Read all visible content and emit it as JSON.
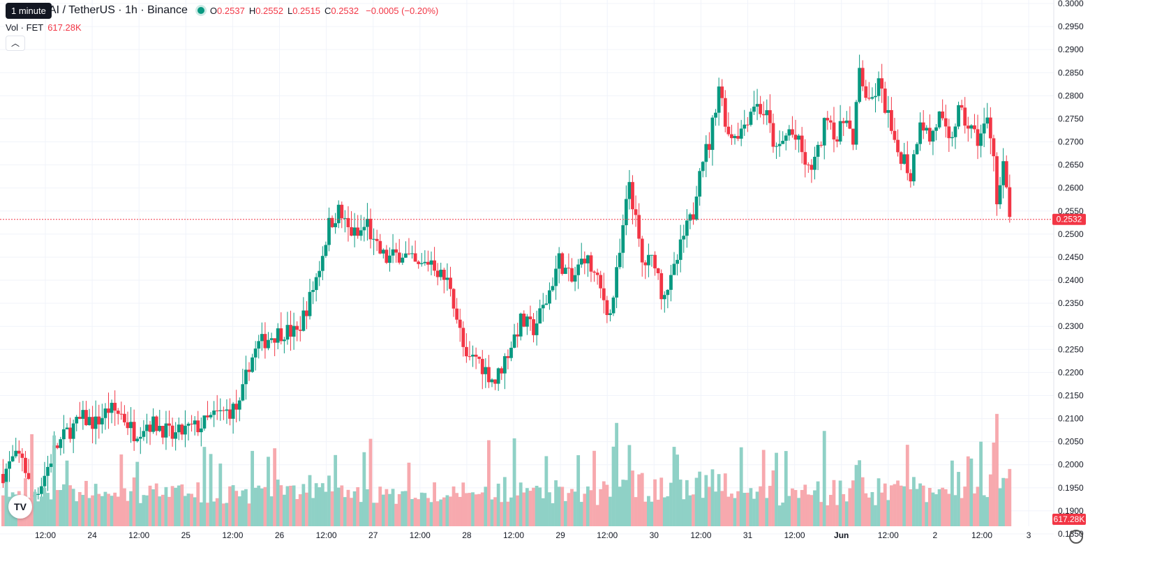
{
  "legend": {
    "tooltip": "1 minute",
    "symbol": "AI / TetherUS · 1h · Binance",
    "o_label": "O",
    "o_value": "0.2537",
    "h_label": "H",
    "h_value": "0.2552",
    "l_label": "L",
    "l_value": "0.2515",
    "c_label": "C",
    "c_value": "0.2532",
    "change": "−0.0005 (−0.20%)",
    "volume_label": "Vol · FET",
    "volume_value": "617.28K",
    "collapse_icon": "chevron-up-icon"
  },
  "colors": {
    "up": "#089981",
    "down": "#f23645",
    "up_vol": "#8fd1c6",
    "down_vol": "#f7a9ae",
    "grid": "#f0f3fa",
    "text": "#131722"
  },
  "chart_data": {
    "type": "candlestick",
    "pair": "FET/USDT",
    "interval": "1h",
    "ylim": [
      0.18,
      0.3
    ],
    "y_ticks": [
      "0.1850",
      "0.1900",
      "0.1950",
      "0.2000",
      "0.2050",
      "0.2100",
      "0.2150",
      "0.2200",
      "0.2250",
      "0.2300",
      "0.2350",
      "0.2400",
      "0.2450",
      "0.2500",
      "0.2550",
      "0.2600",
      "0.2650",
      "0.2700",
      "0.2750",
      "0.2800",
      "0.2850",
      "0.2900",
      "0.2950",
      "0.3000"
    ],
    "x_ticks": [
      "12:00",
      "24",
      "12:00",
      "25",
      "12:00",
      "26",
      "12:00",
      "27",
      "12:00",
      "28",
      "12:00",
      "29",
      "12:00",
      "30",
      "12:00",
      "31",
      "12:00",
      "Jun",
      "12:00",
      "2",
      "12:00",
      "3"
    ],
    "last_price": "0.2532",
    "last_volume": "617.28K",
    "close_path": [
      [
        0,
        0.198
      ],
      [
        3,
        0.201
      ],
      [
        6,
        0.202
      ],
      [
        9,
        0.193
      ],
      [
        12,
        0.196
      ],
      [
        16,
        0.203
      ],
      [
        20,
        0.207
      ],
      [
        25,
        0.21
      ],
      [
        29,
        0.209
      ],
      [
        33,
        0.212
      ],
      [
        37,
        0.211
      ],
      [
        41,
        0.207
      ],
      [
        45,
        0.209
      ],
      [
        49,
        0.2085
      ],
      [
        53,
        0.206
      ],
      [
        57,
        0.2075
      ],
      [
        62,
        0.2085
      ],
      [
        66,
        0.2105
      ],
      [
        70,
        0.2115
      ],
      [
        74,
        0.2125
      ],
      [
        77,
        0.222
      ],
      [
        80,
        0.226
      ],
      [
        84,
        0.228
      ],
      [
        88,
        0.229
      ],
      [
        92,
        0.2285
      ],
      [
        96,
        0.236
      ],
      [
        99,
        0.243
      ],
      [
        102,
        0.252
      ],
      [
        105,
        0.255
      ],
      [
        108,
        0.251
      ],
      [
        111,
        0.2495
      ],
      [
        114,
        0.2525
      ],
      [
        116,
        0.2475
      ],
      [
        120,
        0.2445
      ],
      [
        125,
        0.246
      ],
      [
        130,
        0.2425
      ],
      [
        134,
        0.2445
      ],
      [
        137,
        0.241
      ],
      [
        140,
        0.239
      ],
      [
        142,
        0.232
      ],
      [
        145,
        0.222
      ],
      [
        148,
        0.2235
      ],
      [
        151,
        0.2205
      ],
      [
        154,
        0.218
      ],
      [
        158,
        0.2245
      ],
      [
        162,
        0.231
      ],
      [
        166,
        0.2295
      ],
      [
        170,
        0.2355
      ],
      [
        174,
        0.2445
      ],
      [
        178,
        0.2395
      ],
      [
        182,
        0.2455
      ],
      [
        186,
        0.2395
      ],
      [
        190,
        0.2325
      ],
      [
        193,
        0.2455
      ],
      [
        196,
        0.2615
      ],
      [
        200,
        0.2435
      ],
      [
        204,
        0.2445
      ],
      [
        206,
        0.2375
      ],
      [
        209,
        0.2395
      ],
      [
        213,
        0.2495
      ],
      [
        216,
        0.2545
      ],
      [
        218,
        0.2655
      ],
      [
        221,
        0.2695
      ],
      [
        224,
        0.2825
      ],
      [
        227,
        0.2715
      ],
      [
        231,
        0.2725
      ],
      [
        235,
        0.2785
      ],
      [
        239,
        0.2755
      ],
      [
        242,
        0.2675
      ],
      [
        246,
        0.2725
      ],
      [
        249,
        0.2695
      ],
      [
        252,
        0.2635
      ],
      [
        255,
        0.2675
      ],
      [
        258,
        0.2765
      ],
      [
        261,
        0.2705
      ],
      [
        264,
        0.2765
      ],
      [
        266,
        0.2685
      ],
      [
        268,
        0.2855
      ],
      [
        271,
        0.2775
      ],
      [
        274,
        0.2825
      ],
      [
        277,
        0.2755
      ],
      [
        279,
        0.2685
      ],
      [
        282,
        0.2665
      ],
      [
        284,
        0.2625
      ],
      [
        287,
        0.2755
      ],
      [
        290,
        0.2705
      ],
      [
        293,
        0.2755
      ],
      [
        296,
        0.2695
      ],
      [
        299,
        0.2765
      ],
      [
        302,
        0.2735
      ],
      [
        305,
        0.2705
      ],
      [
        308,
        0.2745
      ],
      [
        310,
        0.2685
      ],
      [
        311,
        0.2565
      ],
      [
        313,
        0.2645
      ],
      [
        315,
        0.2532
      ]
    ]
  }
}
